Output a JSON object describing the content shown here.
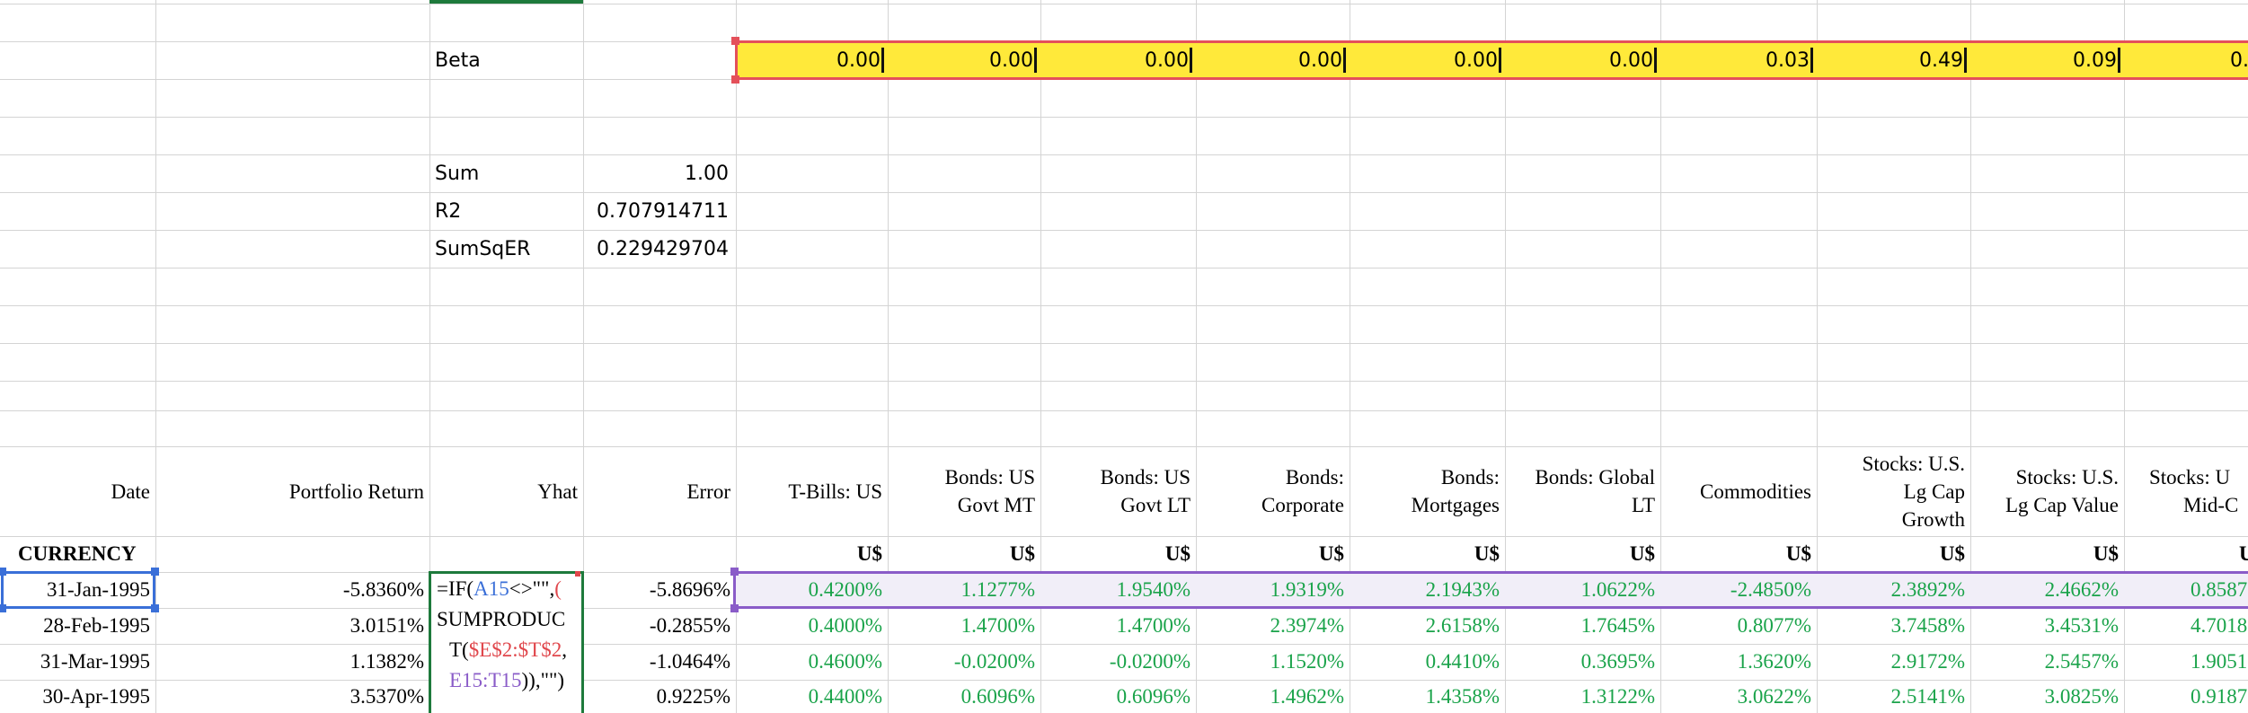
{
  "stats": {
    "beta_label": "Beta",
    "sum_label": "Sum",
    "sum_value": "1.00",
    "r2_label": "R2",
    "r2_value": "0.707914711",
    "sumsqer_label": "SumSqER",
    "sumsqer_value": "0.229429704"
  },
  "beta_values": [
    "0.00",
    "0.00",
    "0.00",
    "0.00",
    "0.00",
    "0.00",
    "0.03",
    "0.49",
    "0.09",
    "0."
  ],
  "headers": {
    "date": "Date",
    "portfolio_return": "Portfolio Return",
    "yhat": "Yhat",
    "error": "Error",
    "assets": [
      [
        "T-Bills: US"
      ],
      [
        "Bonds: US",
        "Govt MT"
      ],
      [
        "Bonds: US",
        "Govt LT"
      ],
      [
        "Bonds:",
        "Corporate"
      ],
      [
        "Bonds:",
        "Mortgages"
      ],
      [
        "Bonds: Global",
        "LT"
      ],
      [
        "Commodities"
      ],
      [
        "Stocks: U.S.",
        "Lg Cap",
        "Growth"
      ],
      [
        "Stocks: U.S.",
        "Lg Cap Value"
      ],
      [
        "Stocks: U",
        "Mid-C"
      ]
    ]
  },
  "currency_label": "CURRENCY",
  "currency_values": [
    "U$",
    "U$",
    "U$",
    "U$",
    "U$",
    "U$",
    "U$",
    "U$",
    "U$",
    "U"
  ],
  "formula": {
    "line1_a": "=IF(",
    "line1_ref": "A15",
    "line1_b": "<>\"\",",
    "line1_c": "(",
    "line2": "SUMPRODUC",
    "line3_a": "T(",
    "line3_ref": "$E$2:$T$2",
    "line3_b": ",",
    "line4_ref": "E15:T15",
    "line4_b": ")),\"\")"
  },
  "rows": [
    {
      "date": "31-Jan-1995",
      "ret": "-5.8360%",
      "err": "-5.8696%",
      "assets": [
        "0.4200%",
        "1.1277%",
        "1.9540%",
        "1.9319%",
        "2.1943%",
        "1.0622%",
        "-2.4850%",
        "2.3892%",
        "2.4662%",
        "0.8587"
      ]
    },
    {
      "date": "28-Feb-1995",
      "ret": "3.0151%",
      "err": "-0.2855%",
      "assets": [
        "0.4000%",
        "1.4700%",
        "1.4700%",
        "2.3974%",
        "2.6158%",
        "1.7645%",
        "0.8077%",
        "3.7458%",
        "3.4531%",
        "4.7018"
      ]
    },
    {
      "date": "31-Mar-1995",
      "ret": "1.1382%",
      "err": "-1.0464%",
      "assets": [
        "0.4600%",
        "-0.0200%",
        "-0.0200%",
        "1.1520%",
        "0.4410%",
        "0.3695%",
        "1.3620%",
        "2.9172%",
        "2.5457%",
        "1.9051"
      ]
    },
    {
      "date": "30-Apr-1995",
      "ret": "3.5370%",
      "err": "0.9225%",
      "assets": [
        "0.4400%",
        "0.6096%",
        "0.6096%",
        "1.4962%",
        "1.4358%",
        "1.3122%",
        "3.0622%",
        "2.5141%",
        "3.0825%",
        "0.9187"
      ]
    }
  ],
  "colors": {
    "beta_fill": "#ffe93a",
    "beta_border": "#e4505a",
    "active_cell": "#1e7a3c",
    "date_ref_border": "#3a6fd8",
    "row_ref_border": "#8a5cc8",
    "row_ref_fill": "#f1eef8",
    "value_green": "#1aa34a"
  }
}
